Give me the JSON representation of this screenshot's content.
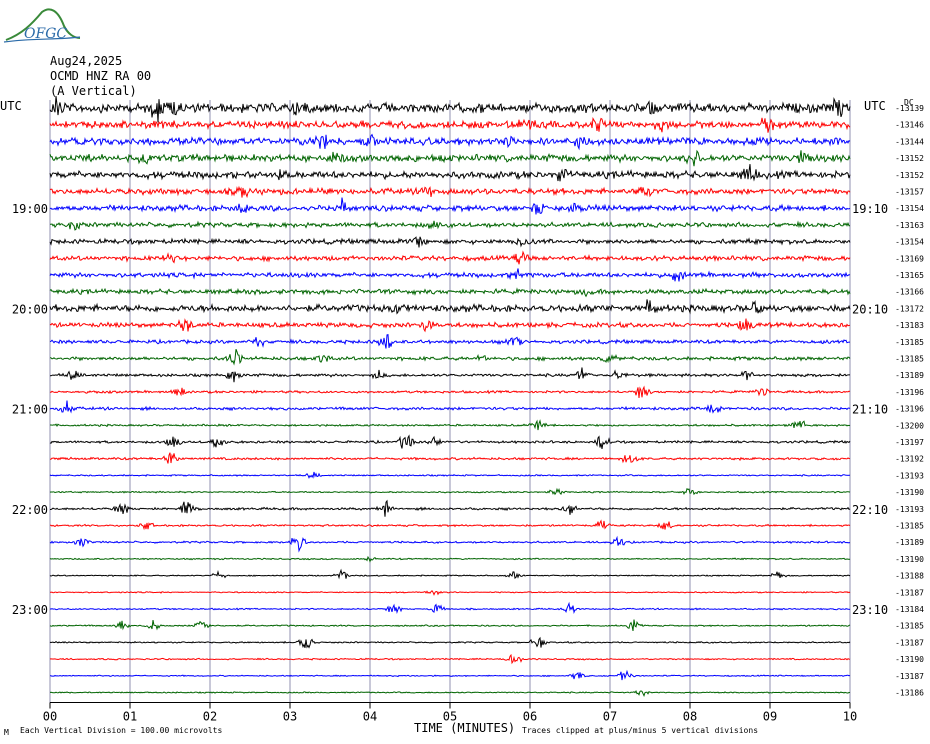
{
  "header": {
    "date": "Aug24,2025",
    "station": "OCMD HNZ RA 00",
    "component": "(A Vertical)",
    "logo": "OFGC"
  },
  "axis": {
    "left_corner_label": "UTC",
    "right_corner_label": "UTC",
    "right_corner_unit": "DC",
    "xlabel": "TIME (MINUTES)",
    "footer_left": "Each Vertical Division =  100.00 microvolts",
    "footer_right": "Traces clipped at plus/minus 5 vertical divisions",
    "footer_mark": "M"
  },
  "chart_data": {
    "type": "line",
    "title": "",
    "xlabel": "TIME (MINUTES)",
    "ylabel": "",
    "xlim": [
      0,
      10
    ],
    "x_ticks": [
      "00",
      "01",
      "02",
      "03",
      "04",
      "05",
      "06",
      "07",
      "08",
      "09",
      "10"
    ],
    "trace_minutes": 10,
    "trace_colors": [
      "#000000",
      "#ff0000",
      "#0000ff",
      "#006400"
    ],
    "hour_labels_left": [
      {
        "row": 0,
        "text": ""
      },
      {
        "row": 6,
        "text": "19:00"
      },
      {
        "row": 12,
        "text": "20:00"
      },
      {
        "row": 18,
        "text": "21:00"
      },
      {
        "row": 24,
        "text": "22:00"
      },
      {
        "row": 30,
        "text": "23:00"
      }
    ],
    "hour_labels_right": [
      {
        "row": 6,
        "text": "19:10"
      },
      {
        "row": 12,
        "text": "20:10"
      },
      {
        "row": 18,
        "text": "21:10"
      },
      {
        "row": 24,
        "text": "22:10"
      },
      {
        "row": 30,
        "text": "23:10"
      }
    ],
    "dc_offsets": [
      "-13139",
      "-13146",
      "-13144",
      "-13152",
      "-13152",
      "-13157",
      "-13154",
      "-13163",
      "-13154",
      "-13169",
      "-13165",
      "-13166",
      "-13172",
      "-13183",
      "-13185",
      "-13185",
      "-13189",
      "-13196",
      "-13196",
      "-13200",
      "-13197",
      "-13192",
      "-13193",
      "-13190",
      "-13193",
      "-13185",
      "-13189",
      "-13190",
      "-13188",
      "-13187",
      "-13184",
      "-13185",
      "-13187",
      "-13190",
      "-13187",
      "-13186"
    ],
    "noise_levels": [
      4,
      3,
      3,
      3,
      3,
      2.5,
      2.5,
      2,
      2,
      2,
      2,
      2,
      3,
      2,
      1.5,
      1.5,
      1.2,
      1,
      1.2,
      0.8,
      1,
      1,
      0.6,
      0.6,
      1,
      0.8,
      0.8,
      0.6,
      0.5,
      0.5,
      0.6,
      0.6,
      0.6,
      0.6,
      0.5,
      0.5
    ],
    "events": [
      [
        [
          0.08,
          8
        ],
        [
          1.35,
          9
        ],
        [
          1.55,
          5
        ],
        [
          3.1,
          5
        ],
        [
          7.5,
          5
        ],
        [
          9.85,
          7
        ]
      ],
      [
        [
          5.95,
          5
        ],
        [
          6.85,
          6
        ],
        [
          7.65,
          5
        ],
        [
          8.95,
          7
        ]
      ],
      [
        [
          3.4,
          5
        ],
        [
          4.0,
          4
        ],
        [
          5.75,
          4
        ],
        [
          6.65,
          6
        ]
      ],
      [
        [
          1.2,
          4
        ],
        [
          3.6,
          5
        ],
        [
          8.05,
          5
        ],
        [
          9.4,
          5
        ]
      ],
      [
        [
          2.9,
          4
        ],
        [
          6.4,
          4
        ],
        [
          8.75,
          6
        ]
      ],
      [
        [
          2.4,
          6
        ],
        [
          4.75,
          4
        ],
        [
          7.45,
          4
        ]
      ],
      [
        [
          2.4,
          6
        ],
        [
          3.65,
          5
        ],
        [
          6.1,
          5
        ],
        [
          6.55,
          5
        ]
      ],
      [
        [
          0.3,
          4
        ],
        [
          4.75,
          4
        ]
      ],
      [
        [
          4.6,
          4
        ],
        [
          5.9,
          4
        ]
      ],
      [
        [
          5.9,
          5
        ],
        [
          1.5,
          3
        ]
      ],
      [
        [
          5.85,
          5
        ],
        [
          7.85,
          5
        ]
      ],
      [
        [
          6.7,
          4
        ]
      ],
      [
        [
          4.3,
          4
        ],
        [
          7.5,
          5
        ],
        [
          8.8,
          5
        ]
      ],
      [
        [
          1.7,
          6
        ],
        [
          4.7,
          6
        ],
        [
          8.7,
          5
        ]
      ],
      [
        [
          2.6,
          4
        ],
        [
          4.2,
          7
        ],
        [
          5.8,
          4
        ]
      ],
      [
        [
          2.3,
          7
        ],
        [
          3.4,
          4
        ],
        [
          5.4,
          4
        ],
        [
          7.0,
          4
        ]
      ],
      [
        [
          0.3,
          4
        ],
        [
          2.3,
          5
        ],
        [
          4.1,
          4
        ],
        [
          6.65,
          5
        ],
        [
          7.1,
          5
        ],
        [
          8.7,
          5
        ]
      ],
      [
        [
          1.6,
          4
        ],
        [
          7.4,
          6
        ],
        [
          8.9,
          4
        ]
      ],
      [
        [
          0.2,
          6
        ],
        [
          8.3,
          4
        ]
      ],
      [
        [
          6.1,
          5
        ],
        [
          9.35,
          6
        ]
      ],
      [
        [
          1.55,
          5
        ],
        [
          2.1,
          5
        ],
        [
          4.45,
          8
        ],
        [
          4.8,
          5
        ],
        [
          6.9,
          6
        ]
      ],
      [
        [
          1.5,
          7
        ],
        [
          7.25,
          7
        ]
      ],
      [
        [
          3.3,
          3
        ]
      ],
      [
        [
          6.35,
          5
        ],
        [
          8.0,
          4
        ]
      ],
      [
        [
          0.9,
          5
        ],
        [
          1.7,
          6
        ],
        [
          4.2,
          6
        ],
        [
          6.5,
          5
        ]
      ],
      [
        [
          1.2,
          4
        ],
        [
          6.9,
          4
        ],
        [
          7.7,
          5
        ]
      ],
      [
        [
          0.4,
          5
        ],
        [
          3.1,
          8
        ],
        [
          7.1,
          5
        ]
      ],
      [
        [
          4.0,
          2
        ]
      ],
      [
        [
          2.1,
          3
        ],
        [
          3.65,
          5
        ],
        [
          5.8,
          3
        ],
        [
          9.1,
          3
        ]
      ],
      [
        [
          4.8,
          2
        ]
      ],
      [
        [
          4.3,
          4
        ],
        [
          4.85,
          5
        ],
        [
          6.5,
          4
        ]
      ],
      [
        [
          0.9,
          5
        ],
        [
          1.3,
          6
        ],
        [
          1.9,
          5
        ],
        [
          7.3,
          4
        ]
      ],
      [
        [
          3.2,
          7
        ],
        [
          6.1,
          5
        ]
      ],
      [
        [
          5.8,
          7
        ]
      ],
      [
        [
          7.2,
          6
        ],
        [
          6.6,
          4
        ]
      ],
      [
        [
          7.4,
          3
        ]
      ]
    ]
  }
}
